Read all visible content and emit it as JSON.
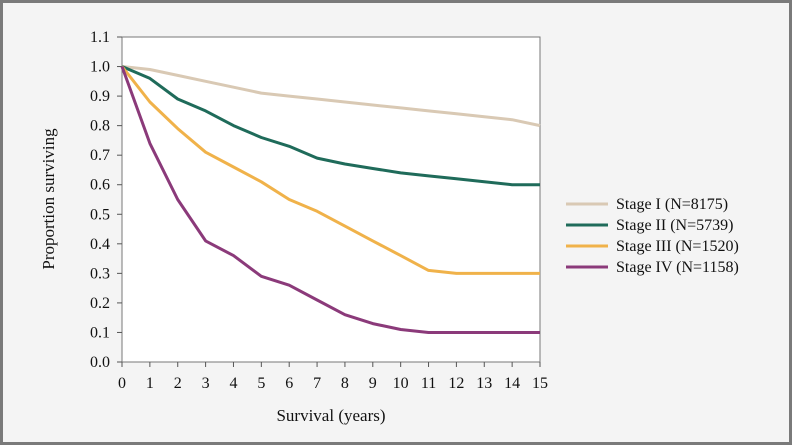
{
  "chart_data": {
    "type": "line",
    "xlabel": "Survival (years)",
    "ylabel": "Proportion surviving",
    "xlim": [
      0,
      15
    ],
    "ylim": [
      0.0,
      1.1
    ],
    "x_ticks": [
      "0",
      "1",
      "2",
      "3",
      "4",
      "5",
      "6",
      "7",
      "8",
      "9",
      "10",
      "11",
      "12",
      "13",
      "14",
      "15"
    ],
    "y_ticks": [
      "0.0",
      "0.1",
      "0.2",
      "0.3",
      "0.4",
      "0.5",
      "0.6",
      "0.7",
      "0.8",
      "0.9",
      "1.0",
      "1.1"
    ],
    "grid": false,
    "legend_position": "right",
    "x": [
      0,
      1,
      2,
      3,
      4,
      5,
      6,
      7,
      8,
      9,
      10,
      11,
      12,
      13,
      14,
      15
    ],
    "series": [
      {
        "name": "Stage I (N=8175)",
        "color": "#d9c9b4",
        "values": [
          1.0,
          0.99,
          0.97,
          0.95,
          0.93,
          0.91,
          0.9,
          0.89,
          0.88,
          0.87,
          0.86,
          0.85,
          0.84,
          0.83,
          0.82,
          0.8
        ]
      },
      {
        "name": "Stage II (N=5739)",
        "color": "#1f6b5a",
        "values": [
          1.0,
          0.96,
          0.89,
          0.85,
          0.8,
          0.76,
          0.73,
          0.69,
          0.67,
          0.655,
          0.64,
          0.63,
          0.62,
          0.61,
          0.6,
          0.6
        ]
      },
      {
        "name": "Stage III (N=1520)",
        "color": "#f0b24a",
        "values": [
          1.0,
          0.88,
          0.79,
          0.71,
          0.66,
          0.61,
          0.55,
          0.51,
          0.46,
          0.41,
          0.36,
          0.31,
          0.3,
          0.3,
          0.3,
          0.3
        ]
      },
      {
        "name": "Stage IV (N=1158)",
        "color": "#8b3a7a",
        "values": [
          1.0,
          0.74,
          0.55,
          0.41,
          0.36,
          0.29,
          0.26,
          0.21,
          0.16,
          0.13,
          0.11,
          0.1,
          0.1,
          0.1,
          0.1,
          0.1
        ]
      }
    ]
  }
}
